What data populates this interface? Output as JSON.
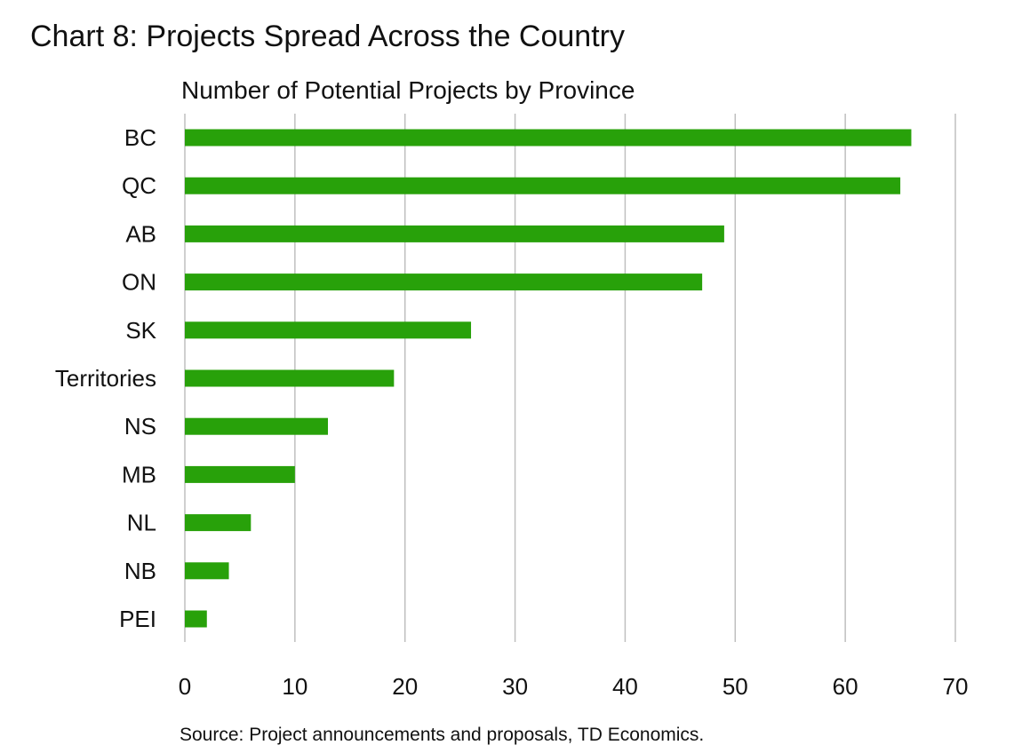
{
  "chart_data": {
    "type": "bar",
    "orientation": "horizontal",
    "title": "Chart 8: Projects Spread Across the Country",
    "subtitle": "Number of Potential Projects by Province",
    "source": "Source: Project announcements and proposals, TD Economics.",
    "categories": [
      "BC",
      "QC",
      "AB",
      "ON",
      "SK",
      "Territories",
      "NS",
      "MB",
      "NL",
      "NB",
      "PEI"
    ],
    "values": [
      66,
      65,
      49,
      47,
      26,
      19,
      13,
      10,
      6,
      4,
      2
    ],
    "xlim": [
      0,
      70
    ],
    "xticks": [
      0,
      10,
      20,
      30,
      40,
      50,
      60,
      70
    ],
    "xlabel": "",
    "ylabel": "",
    "grid": "vertical",
    "bar_color": "#28a10a",
    "grid_color": "#bfbfbf"
  }
}
